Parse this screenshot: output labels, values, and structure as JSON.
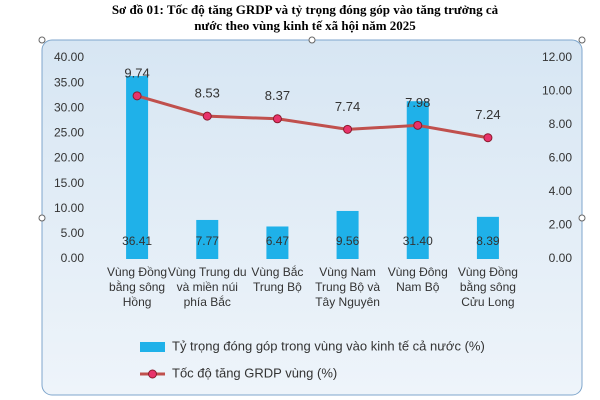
{
  "chart_data": {
    "type": "bar_line",
    "title": "Sơ đồ 01: Tốc độ tăng GRDP và tỷ trọng đóng góp vào tăng trưởng cả nước theo vùng kinh tế xã hội năm 2025",
    "categories": [
      "Vùng Đồng bằng sông Hồng",
      "Vùng Trung du và miền núi phía Bắc",
      "Vùng Bắc Trung Bộ",
      "Vùng Nam Trung Bộ và Tây Nguyên",
      "Vùng Đông Nam Bộ",
      "Vùng Đồng bằng sông Cửu Long"
    ],
    "series": [
      {
        "name": "Tỷ trọng đóng góp trong vùng vào kinh tế cả nước (%)",
        "type": "bar",
        "color": "#1fb1e9",
        "values": [
          36.41,
          7.77,
          6.47,
          9.56,
          31.4,
          8.39
        ],
        "value_labels": [
          "36.41",
          "7.77",
          "6.47",
          "9.56",
          "31.40",
          "8.39"
        ]
      },
      {
        "name": "Tốc độ tăng GRDP vùng (%)",
        "type": "line",
        "axis": "y2",
        "color": "#c0504d",
        "marker_color": "#e8336b",
        "values": [
          9.74,
          8.53,
          8.37,
          7.74,
          7.98,
          7.24
        ]
      }
    ],
    "ylim": [
      0,
      40
    ],
    "yticks": [
      {
        "value": 0,
        "label": "0.00"
      },
      {
        "value": 5,
        "label": "5.00"
      },
      {
        "value": 10,
        "label": "10.00"
      },
      {
        "value": 15,
        "label": "15.00"
      },
      {
        "value": 20,
        "label": "20.00"
      },
      {
        "value": 25,
        "label": "25.00"
      },
      {
        "value": 30,
        "label": "30.00"
      },
      {
        "value": 35,
        "label": "35.00"
      },
      {
        "value": 40,
        "label": "40.00"
      }
    ],
    "y2lim": [
      0,
      12
    ],
    "y2ticks": [
      {
        "value": 0,
        "label": "0.00"
      },
      {
        "value": 2,
        "label": "2.00"
      },
      {
        "value": 4,
        "label": "4.00"
      },
      {
        "value": 6,
        "label": "6.00"
      },
      {
        "value": 8,
        "label": "8.00"
      },
      {
        "value": 10,
        "label": "10.00"
      },
      {
        "value": 12,
        "label": "12.00"
      }
    ],
    "grid": false
  }
}
